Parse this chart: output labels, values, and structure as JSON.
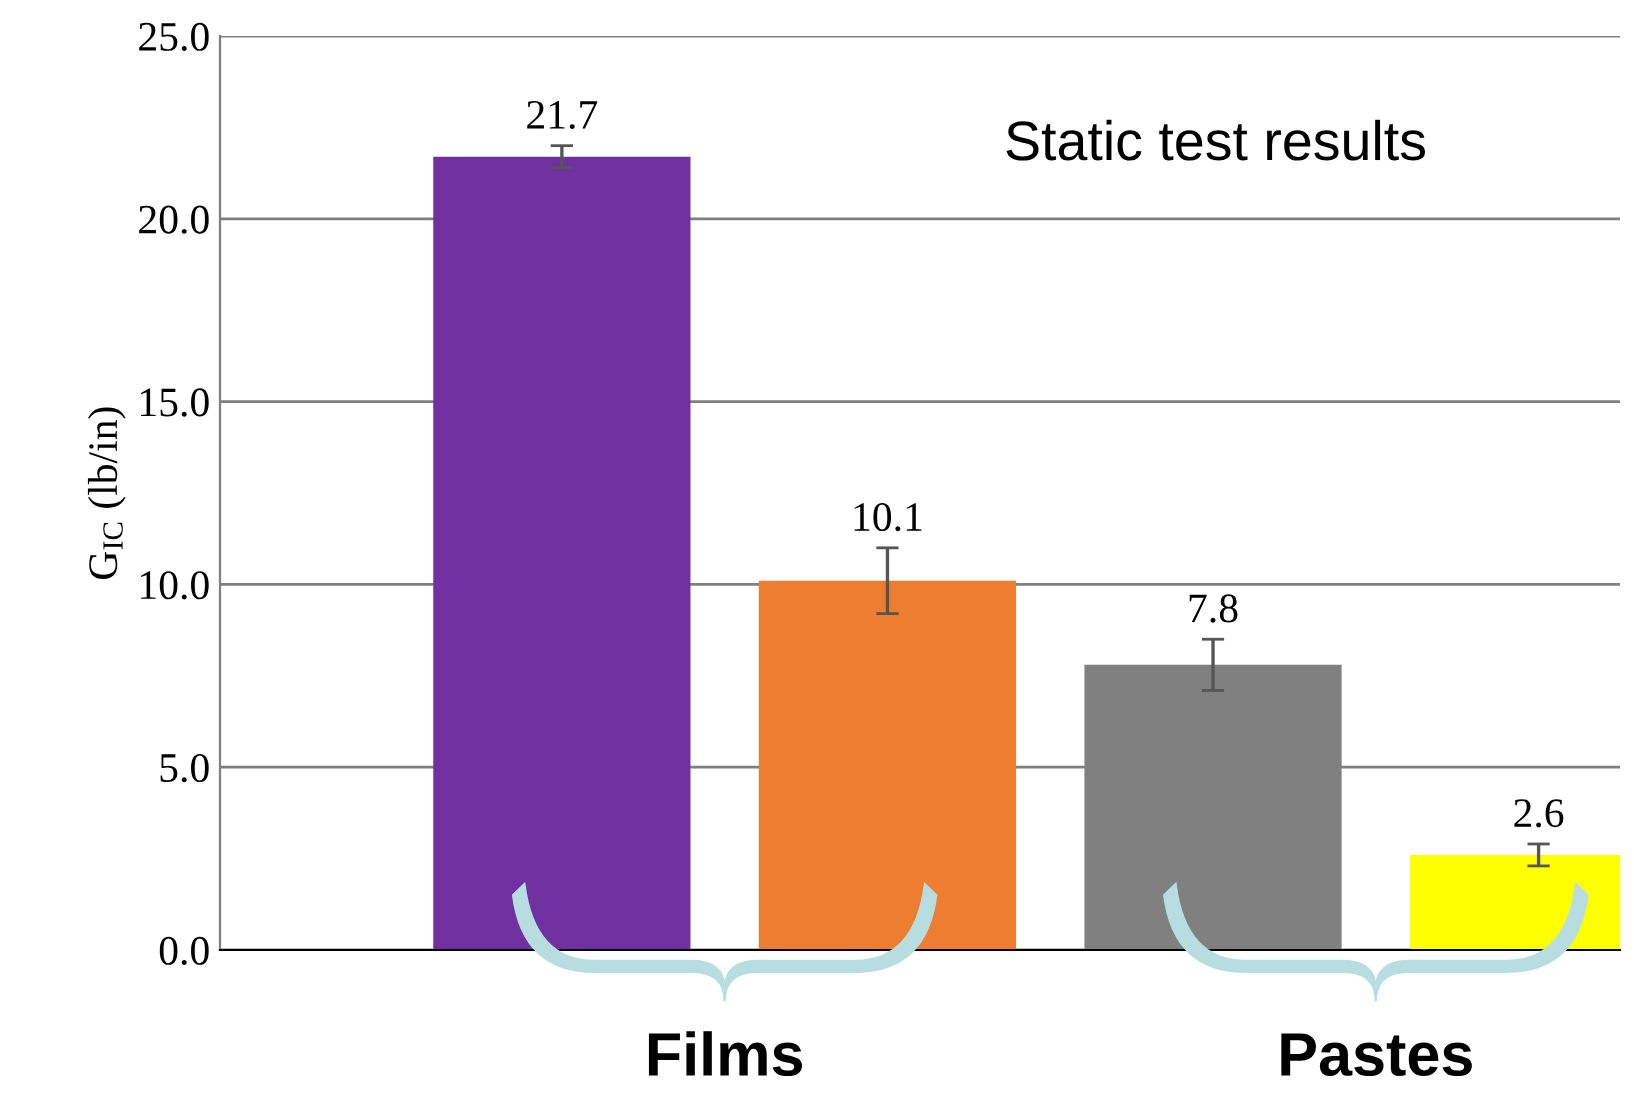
{
  "chart_data": {
    "type": "bar",
    "ylabel": "G$_{IC}$ (lb/in)",
    "categories": [
      null,
      null,
      null,
      null
    ],
    "values": [
      21.7,
      10.1,
      7.8,
      2.6
    ],
    "colors": [
      "#7030a0",
      "#ed7d31",
      "#808080",
      "#ffff00"
    ],
    "errors": [
      0.3,
      0.9,
      0.7,
      0.3
    ],
    "data_labels": true,
    "ylim": [
      0,
      25
    ],
    "yticks": [
      {
        "value": 0,
        "label": "0.0"
      },
      {
        "value": 5,
        "label": "5.0"
      },
      {
        "value": 10,
        "label": "10.0"
      },
      {
        "value": 15,
        "label": "15.0"
      },
      {
        "value": 20,
        "label": "20.0"
      },
      {
        "value": 25,
        "label": "25.0"
      }
    ],
    "grid": "y",
    "annotations": [
      "Static test results",
      "Films",
      "Pastes"
    ]
  }
}
